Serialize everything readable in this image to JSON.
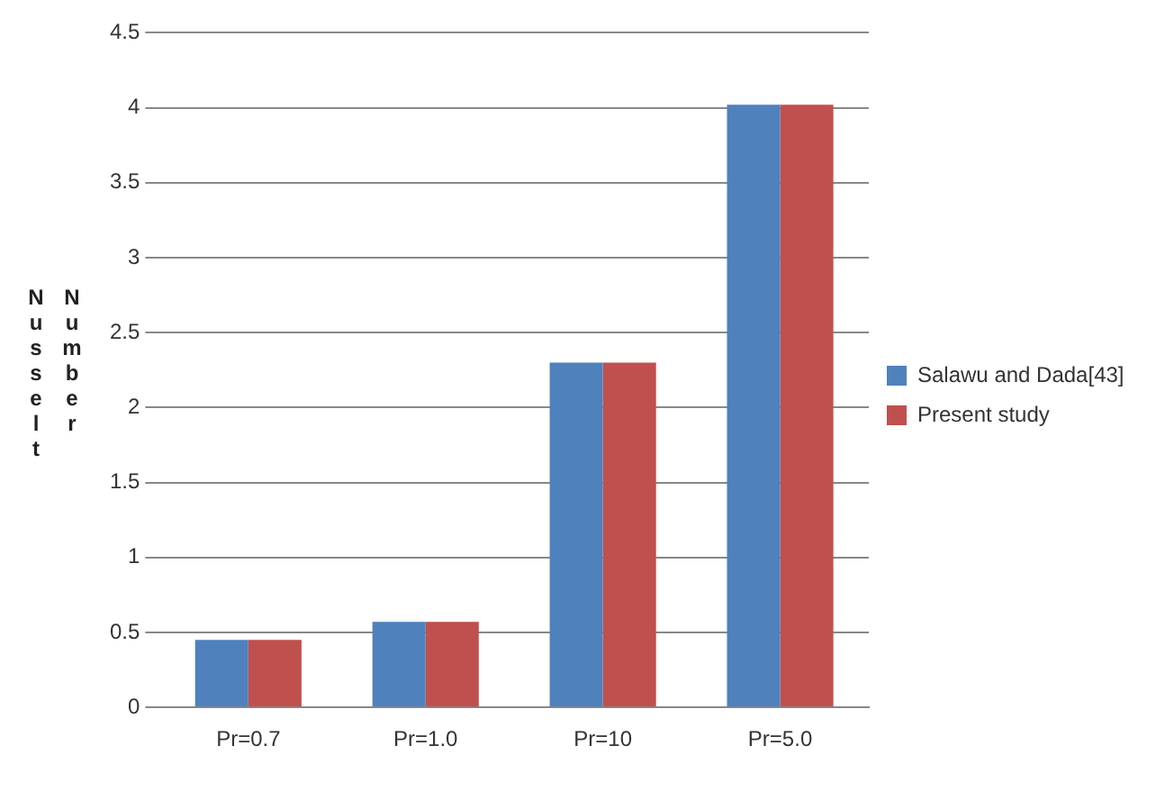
{
  "chart_data": {
    "type": "bar",
    "ylabel": "Nusselt Number",
    "categories": [
      "Pr=0.7",
      "Pr=1.0",
      "Pr=10",
      "Pr=5.0"
    ],
    "series": [
      {
        "name": "Salawu and Dada[43]",
        "color": "#4f81bd",
        "values": [
          0.45,
          0.57,
          2.3,
          4.02
        ]
      },
      {
        "name": "Present study",
        "color": "#c0504d",
        "values": [
          0.45,
          0.57,
          2.3,
          4.02
        ]
      }
    ],
    "ylim": [
      0,
      4.5
    ],
    "yticks": [
      0,
      0.5,
      1,
      1.5,
      2,
      2.5,
      3,
      3.5,
      4,
      4.5
    ],
    "grid": "y",
    "legend": "right"
  }
}
